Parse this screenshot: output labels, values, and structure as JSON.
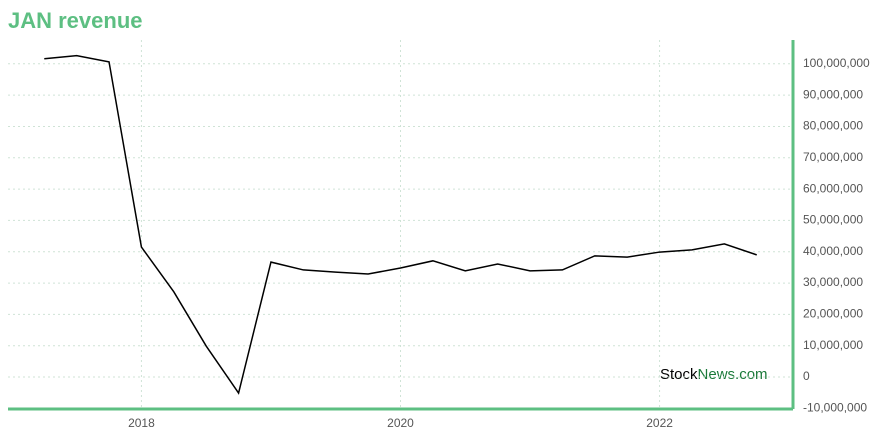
{
  "chart_data": {
    "type": "line",
    "title": "JAN revenue",
    "x": [
      2017.25,
      2017.5,
      2017.75,
      2018.0,
      2018.25,
      2018.5,
      2018.75,
      2019.0,
      2019.25,
      2019.5,
      2019.75,
      2020.0,
      2020.25,
      2020.5,
      2020.75,
      2021.0,
      2021.25,
      2021.5,
      2021.75,
      2022.0,
      2022.25,
      2022.5,
      2022.75
    ],
    "series": [
      {
        "name": "JAN revenue",
        "color": "#000000",
        "values": [
          101600000,
          102600000,
          100600000,
          41500000,
          27200000,
          9900000,
          -5100000,
          36700000,
          34200000,
          33500000,
          32900000,
          34800000,
          37100000,
          33900000,
          36100000,
          33900000,
          34200000,
          38700000,
          38300000,
          39900000,
          40600000,
          42500000,
          39000000
        ]
      }
    ],
    "xlim": [
      2016.97,
      2023.03
    ],
    "xticks": [
      2018,
      2020,
      2022
    ],
    "ylim": [
      -10200000,
      107600000
    ],
    "yticks": [
      {
        "value": -10000000,
        "label": "-10,000,000"
      },
      0,
      {
        "value": 10000000,
        "label": "10,000,000"
      },
      {
        "value": 20000000,
        "label": "20,000,000"
      },
      {
        "value": 30000000,
        "label": "30,000,000"
      },
      {
        "value": 40000000,
        "label": "40,000,000"
      },
      {
        "value": 50000000,
        "label": "50,000,000"
      },
      {
        "value": 60000000,
        "label": "60,000,000"
      },
      {
        "value": 70000000,
        "label": "70,000,000"
      },
      {
        "value": 80000000,
        "label": "80,000,000"
      },
      {
        "value": 90000000,
        "label": "90,000,000"
      },
      {
        "value": 100000000,
        "label": "100,000,000"
      }
    ],
    "grid": true,
    "axis_color": "#5dbf82",
    "title_color": "#5dbf82"
  },
  "watermark": {
    "stock": "Stock",
    "news": "News.com"
  }
}
